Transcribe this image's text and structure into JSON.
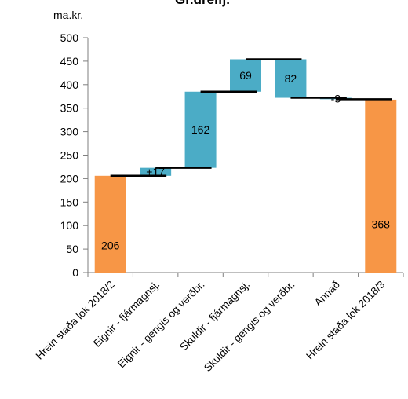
{
  "chart_data": {
    "type": "bar",
    "subtype": "waterfall",
    "title": "Gr.dreifj.",
    "unit_label": "ma.kr.",
    "xlabel": "",
    "ylabel": "",
    "ylim": [
      0,
      500
    ],
    "yticks": [
      0,
      50,
      100,
      150,
      200,
      250,
      300,
      350,
      400,
      450,
      500
    ],
    "grid": false,
    "legend": "none",
    "colors": {
      "total": "#F79646",
      "change": "#4BACC6",
      "connector": "#000000"
    },
    "categories": [
      "Hrein staða lok 2018/2",
      "Eignir - fjármagnsj.",
      "Eignir - gengis og verðbr.",
      "Skuldir - fjármagnsj.",
      "Skuldir - gengis og verðbr.",
      "Annað",
      "Hrein staða lok 2018/3"
    ],
    "bars": [
      {
        "kind": "total",
        "start": 0,
        "end": 206,
        "label": "206"
      },
      {
        "kind": "change",
        "start": 206,
        "end": 223,
        "label": "+17"
      },
      {
        "kind": "change",
        "start": 223,
        "end": 385,
        "label": "162"
      },
      {
        "kind": "change",
        "start": 385,
        "end": 454,
        "label": "69"
      },
      {
        "kind": "change",
        "start": 454,
        "end": 372,
        "label": "82"
      },
      {
        "kind": "change",
        "start": 372,
        "end": 369,
        "label": "-3"
      },
      {
        "kind": "total",
        "start": 0,
        "end": 368,
        "label": "368"
      }
    ]
  }
}
